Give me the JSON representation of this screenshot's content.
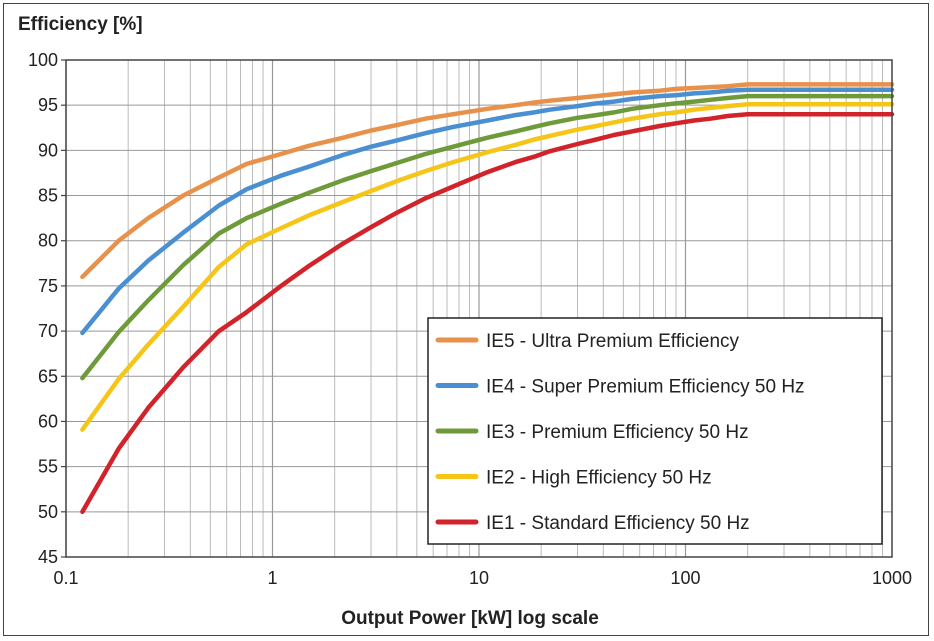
{
  "chart_data": {
    "type": "line",
    "ylabel": "Efficiency  [%]",
    "xlabel": "Output Power [kW]   log scale",
    "x_scale": "log",
    "xlim": [
      0.1,
      1000
    ],
    "ylim": [
      45,
      100
    ],
    "x_ticks": [
      "0.1",
      "1",
      "10",
      "100",
      "1000"
    ],
    "y_ticks": [
      "45",
      "50",
      "55",
      "60",
      "65",
      "70",
      "75",
      "80",
      "85",
      "90",
      "95",
      "100"
    ],
    "grid": true,
    "legend_position": "bottom-right",
    "series": [
      {
        "name": "IE5 - Ultra Premium Efficiency",
        "color": "#e8914a",
        "x": [
          0.12,
          0.18,
          0.25,
          0.37,
          0.55,
          0.75,
          1.1,
          1.5,
          2.2,
          3,
          4,
          5.5,
          7.5,
          11,
          15,
          18.5,
          22,
          30,
          37,
          45,
          55,
          75,
          90,
          110,
          132,
          160,
          200,
          250,
          315,
          355,
          400,
          500,
          1000
        ],
        "y": [
          76,
          80,
          82.5,
          85,
          87,
          88.5,
          89.6,
          90.5,
          91.4,
          92.2,
          92.8,
          93.5,
          94,
          94.6,
          95,
          95.3,
          95.5,
          95.8,
          96,
          96.2,
          96.4,
          96.6,
          96.8,
          96.9,
          97,
          97.1,
          97.3,
          97.3,
          97.3,
          97.3,
          97.3,
          97.3,
          97.3
        ]
      },
      {
        "name": "IE4 - Super Premium Efficiency 50 Hz",
        "color": "#4a8fd1",
        "x": [
          0.12,
          0.18,
          0.25,
          0.37,
          0.55,
          0.75,
          1.1,
          1.5,
          2.2,
          3,
          4,
          5.5,
          7.5,
          11,
          15,
          18.5,
          22,
          30,
          37,
          45,
          55,
          75,
          90,
          110,
          132,
          160,
          200,
          250,
          315,
          355,
          400,
          500,
          1000
        ],
        "y": [
          69.8,
          74.7,
          77.8,
          80.9,
          83.9,
          85.7,
          87.2,
          88.2,
          89.5,
          90.4,
          91.1,
          91.9,
          92.6,
          93.3,
          93.9,
          94.2,
          94.5,
          94.9,
          95.2,
          95.4,
          95.7,
          96,
          96.1,
          96.3,
          96.4,
          96.6,
          96.7,
          96.7,
          96.7,
          96.7,
          96.7,
          96.7,
          96.7
        ]
      },
      {
        "name": "IE3 - Premium Efficiency 50 Hz",
        "color": "#6e9a3a",
        "x": [
          0.12,
          0.18,
          0.25,
          0.37,
          0.55,
          0.75,
          1.1,
          1.5,
          2.2,
          3,
          4,
          5.5,
          7.5,
          11,
          15,
          18.5,
          22,
          30,
          37,
          45,
          55,
          75,
          90,
          110,
          132,
          160,
          200,
          250,
          315,
          355,
          400,
          500,
          1000
        ],
        "y": [
          64.8,
          69.9,
          73.4,
          77.3,
          80.8,
          82.5,
          84.1,
          85.3,
          86.7,
          87.7,
          88.6,
          89.6,
          90.4,
          91.4,
          92.1,
          92.6,
          93,
          93.6,
          93.9,
          94.2,
          94.6,
          95,
          95.2,
          95.4,
          95.6,
          95.8,
          96,
          96,
          96,
          96,
          96,
          96,
          96
        ]
      },
      {
        "name": "IE2 - High Efficiency 50 Hz",
        "color": "#f5c518",
        "x": [
          0.12,
          0.18,
          0.25,
          0.37,
          0.55,
          0.75,
          1.1,
          1.5,
          2.2,
          3,
          4,
          5.5,
          7.5,
          11,
          15,
          18.5,
          22,
          30,
          37,
          45,
          55,
          75,
          90,
          110,
          132,
          160,
          200,
          250,
          315,
          355,
          400,
          500,
          1000
        ],
        "y": [
          59.1,
          64.7,
          68.5,
          72.7,
          77.1,
          79.6,
          81.4,
          82.8,
          84.3,
          85.5,
          86.6,
          87.7,
          88.7,
          89.8,
          90.6,
          91.2,
          91.6,
          92.3,
          92.7,
          93.1,
          93.5,
          94,
          94.2,
          94.5,
          94.7,
          94.9,
          95.1,
          95.1,
          95.1,
          95.1,
          95.1,
          95.1,
          95.1
        ]
      },
      {
        "name": "IE1 - Standard Efficiency 50 Hz",
        "color": "#d2232a",
        "x": [
          0.12,
          0.18,
          0.25,
          0.37,
          0.55,
          0.75,
          1.1,
          1.5,
          2.2,
          3,
          4,
          5.5,
          7.5,
          11,
          15,
          18.5,
          22,
          30,
          37,
          45,
          55,
          75,
          90,
          110,
          132,
          160,
          200,
          250,
          315,
          355,
          400,
          500,
          1000
        ],
        "y": [
          50,
          57,
          61.5,
          66,
          70,
          72.1,
          75,
          77.2,
          79.7,
          81.5,
          83.1,
          84.7,
          86,
          87.6,
          88.7,
          89.3,
          89.9,
          90.7,
          91.2,
          91.7,
          92.1,
          92.7,
          93,
          93.3,
          93.5,
          93.8,
          94,
          94,
          94,
          94,
          94,
          94,
          94
        ]
      }
    ]
  }
}
